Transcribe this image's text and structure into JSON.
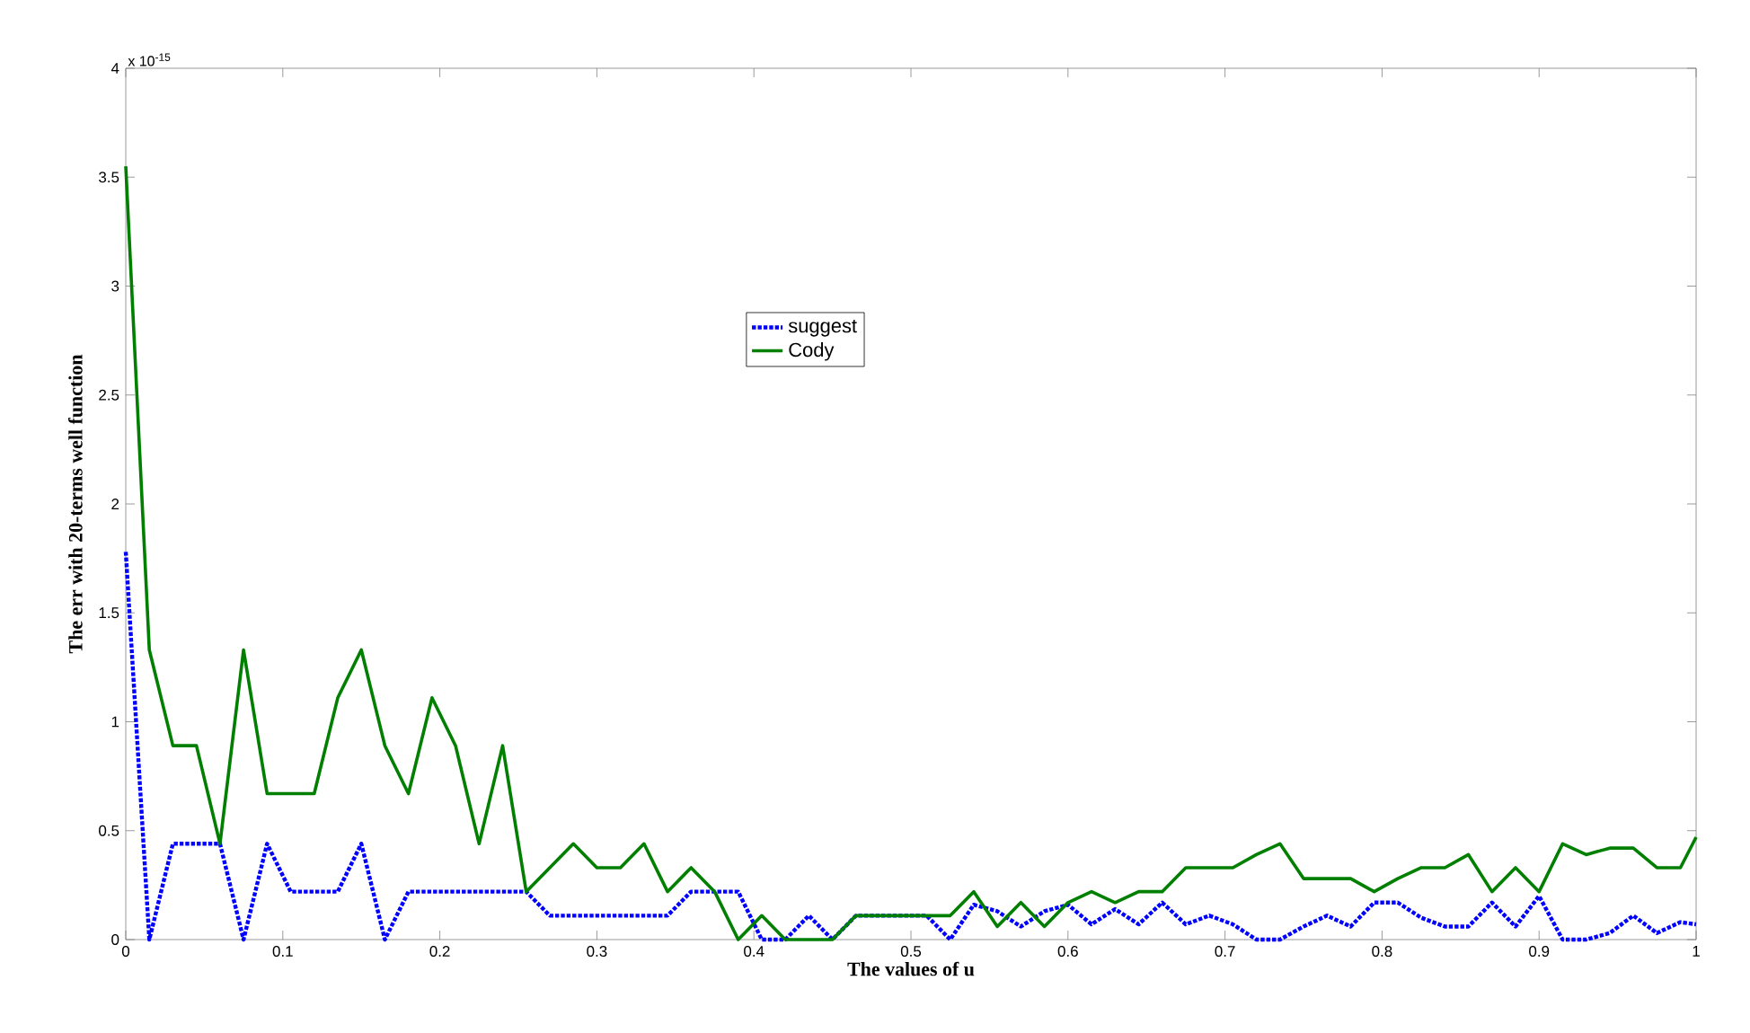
{
  "chart_data": {
    "type": "line",
    "xlabel": "The values of u",
    "ylabel": "The err with 20-terms well function",
    "annotations": [
      "x 10$^{-15}$"
    ],
    "x": [
      0,
      0.015,
      0.03,
      0.045,
      0.06,
      0.075,
      0.09,
      0.105,
      0.12,
      0.135,
      0.15,
      0.165,
      0.18,
      0.195,
      0.21,
      0.225,
      0.24,
      0.255,
      0.27,
      0.285,
      0.3,
      0.315,
      0.33,
      0.345,
      0.36,
      0.375,
      0.39,
      0.405,
      0.42,
      0.435,
      0.45,
      0.465,
      0.48,
      0.495,
      0.51,
      0.525,
      0.54,
      0.555,
      0.57,
      0.585,
      0.6,
      0.615,
      0.63,
      0.645,
      0.66,
      0.675,
      0.69,
      0.705,
      0.72,
      0.735,
      0.75,
      0.765,
      0.78,
      0.795,
      0.81,
      0.825,
      0.84,
      0.855,
      0.87,
      0.885,
      0.9,
      0.915,
      0.93,
      0.945,
      0.96,
      0.975,
      0.99,
      1
    ],
    "series": [
      {
        "name": "suggest",
        "color": "#0000ff",
        "line_style": "dotted",
        "values": [
          1.78,
          0,
          0.44,
          0.44,
          0.44,
          0,
          0.44,
          0.22,
          0.22,
          0.22,
          0.44,
          0,
          0.22,
          0.22,
          0.22,
          0.22,
          0.22,
          0.22,
          0.11,
          0.11,
          0.11,
          0.11,
          0.11,
          0.11,
          0.22,
          0.22,
          0.22,
          0,
          0,
          0.11,
          0,
          0.11,
          0.11,
          0.11,
          0.11,
          0,
          0.16,
          0.13,
          0.06,
          0.13,
          0.16,
          0.07,
          0.14,
          0.07,
          0.17,
          0.07,
          0.11,
          0.07,
          0,
          0,
          0.06,
          0.11,
          0.06,
          0.17,
          0.17,
          0.1,
          0.06,
          0.06,
          0.17,
          0.06,
          0.2,
          0,
          0,
          0.03,
          0.11,
          0.03,
          0.08,
          0.07
        ]
      },
      {
        "name": "Cody",
        "color": "#007f00",
        "line_style": "solid",
        "values": [
          3.55,
          1.33,
          0.89,
          0.89,
          0.44,
          1.33,
          0.67,
          0.67,
          0.67,
          1.11,
          1.33,
          0.89,
          0.67,
          1.11,
          0.89,
          0.44,
          0.89,
          0.22,
          0.33,
          0.44,
          0.33,
          0.33,
          0.44,
          0.22,
          0.33,
          0.22,
          0,
          0.11,
          0,
          0,
          0,
          0.11,
          0.11,
          0.11,
          0.11,
          0.11,
          0.22,
          0.06,
          0.17,
          0.06,
          0.17,
          0.22,
          0.17,
          0.22,
          0.22,
          0.33,
          0.33,
          0.33,
          0.39,
          0.44,
          0.28,
          0.28,
          0.28,
          0.22,
          0.28,
          0.33,
          0.33,
          0.39,
          0.22,
          0.33,
          0.22,
          0.44,
          0.39,
          0.42,
          0.42,
          0.33,
          0.33,
          0.47
        ]
      }
    ],
    "xlim": [
      0,
      1
    ],
    "ylim": [
      0,
      4
    ],
    "xticks": [
      0,
      0.1,
      0.2,
      0.3,
      0.4,
      0.5,
      0.6,
      0.7,
      0.8,
      0.9,
      1
    ],
    "yticks": [
      0,
      0.5,
      1,
      1.5,
      2,
      2.5,
      3,
      3.5,
      4
    ],
    "grid": false,
    "legend": "top",
    "marker": "none"
  }
}
